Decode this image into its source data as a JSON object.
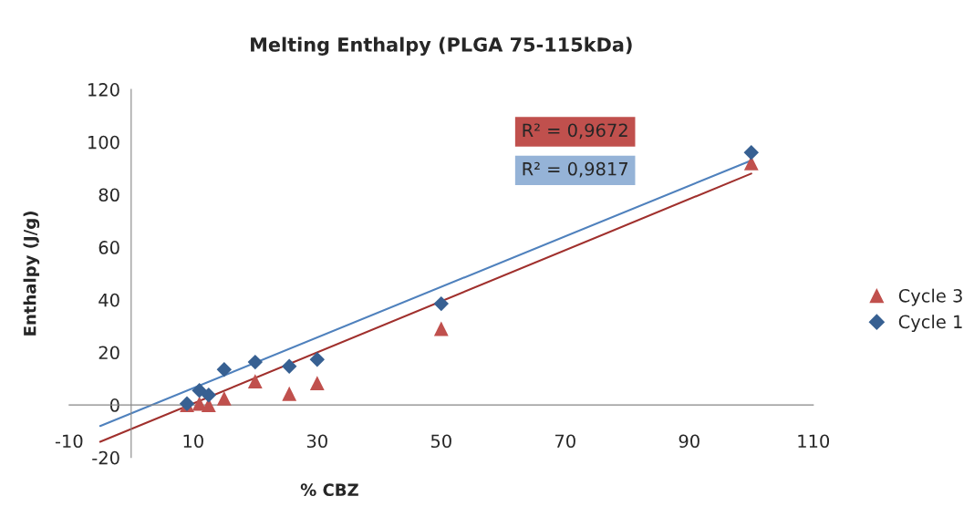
{
  "chart_data": {
    "type": "scatter",
    "title": "Melting Enthalpy (PLGA 75-115kDa)",
    "xlabel": "% CBZ",
    "ylabel": "Enthalpy (J/g)",
    "xlim": [
      -10,
      110
    ],
    "xticks": [
      -10,
      10,
      30,
      50,
      70,
      90,
      110
    ],
    "ylim": [
      -20,
      120
    ],
    "yticks": [
      -20,
      0,
      20,
      40,
      60,
      80,
      100,
      120
    ],
    "grid": false,
    "legend": "right",
    "annotations": [
      "R² = 0,9672",
      "R² = 0,9817"
    ],
    "series": [
      {
        "name": "Cycle 3",
        "marker": "triangle",
        "color": "#c0504d",
        "x": [
          9,
          11,
          12.5,
          15,
          20,
          25.5,
          30,
          50,
          100
        ],
        "values": [
          0,
          0.5,
          0,
          2.5,
          9,
          4.3,
          8.3,
          29,
          92
        ]
      },
      {
        "name": "Cycle 1",
        "marker": "diamond",
        "color": "#376092",
        "x": [
          9,
          11,
          12.5,
          15,
          20,
          25.5,
          30,
          50,
          100
        ],
        "values": [
          0.5,
          5.5,
          3.8,
          13.5,
          16.3,
          14.7,
          17.3,
          38.5,
          96
        ]
      },
      {
        "type": "line",
        "color": "#4f81bd",
        "x": [
          -5,
          100
        ],
        "values": [
          -8,
          93
        ]
      },
      {
        "type": "line",
        "color": "#a0302d",
        "x": [
          -5,
          100
        ],
        "values": [
          -14,
          88
        ]
      }
    ]
  }
}
